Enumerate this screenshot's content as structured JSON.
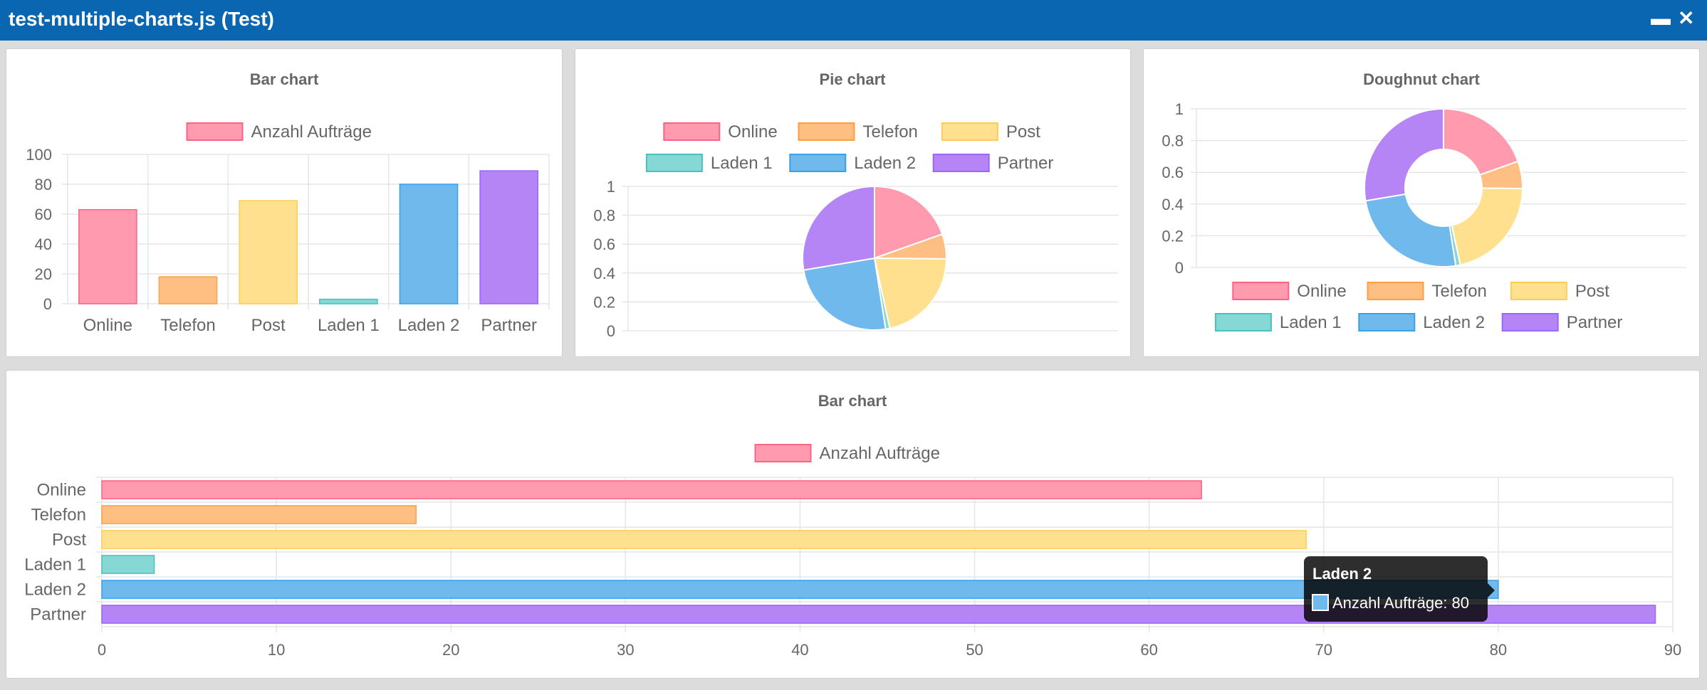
{
  "window": {
    "title": "test-multiple-charts.js (Test)",
    "minimize_glyph": "▬",
    "close_glyph": "✕"
  },
  "colors": {
    "fills": [
      "#ff9aaf",
      "#ffbe82",
      "#ffe08e",
      "#86d8d5",
      "#70b9ec",
      "#b584f5"
    ],
    "strokes": [
      "#ff6384",
      "#ff9f40",
      "#ffcd56",
      "#4bc0c0",
      "#36a2eb",
      "#9966ff"
    ],
    "grid": "#e5e5e5",
    "text": "#666666",
    "titlebar": "#0a66b0"
  },
  "tooltip": {
    "title": "Laden 2",
    "label": "Anzahl Aufträge: 80"
  },
  "chart_data": [
    {
      "type": "bar",
      "title": "Bar chart",
      "categories": [
        "Online",
        "Telefon",
        "Post",
        "Laden 1",
        "Laden 2",
        "Partner"
      ],
      "series": [
        {
          "name": "Anzahl Aufträge",
          "values": [
            63,
            18,
            69,
            3,
            80,
            89
          ]
        }
      ],
      "yticks": [
        "100",
        "80",
        "60",
        "40",
        "20",
        "0"
      ],
      "ylim": [
        0,
        100
      ],
      "legend": "top"
    },
    {
      "type": "pie",
      "title": "Pie chart",
      "categories": [
        "Online",
        "Telefon",
        "Post",
        "Laden 1",
        "Laden 2",
        "Partner"
      ],
      "values": [
        63,
        18,
        69,
        3,
        80,
        89
      ],
      "yticks": [
        "1",
        "0.8",
        "0.6",
        "0.4",
        "0.2",
        "0"
      ],
      "legend": "top"
    },
    {
      "type": "pie",
      "variant": "doughnut",
      "title": "Doughnut chart",
      "categories": [
        "Online",
        "Telefon",
        "Post",
        "Laden 1",
        "Laden 2",
        "Partner"
      ],
      "values": [
        63,
        18,
        69,
        3,
        80,
        89
      ],
      "yticks": [
        "1",
        "0.8",
        "0.6",
        "0.4",
        "0.2",
        "0"
      ],
      "legend": "bottom"
    },
    {
      "type": "bar",
      "orientation": "horizontal",
      "title": "Bar chart",
      "categories": [
        "Online",
        "Telefon",
        "Post",
        "Laden 1",
        "Laden 2",
        "Partner"
      ],
      "series": [
        {
          "name": "Anzahl Aufträge",
          "values": [
            63,
            18,
            69,
            3,
            80,
            89
          ]
        }
      ],
      "xticks": [
        "0",
        "10",
        "20",
        "30",
        "40",
        "50",
        "60",
        "70",
        "80",
        "90"
      ],
      "xlim": [
        0,
        90
      ],
      "legend": "top"
    }
  ]
}
